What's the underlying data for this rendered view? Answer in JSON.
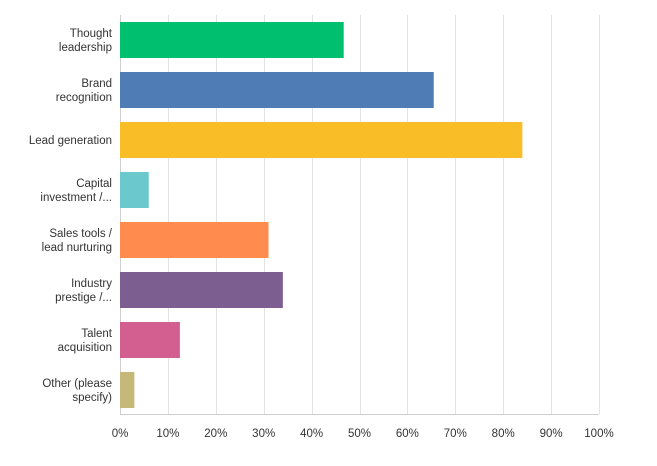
{
  "chart_data": {
    "type": "bar",
    "orientation": "horizontal",
    "categories": [
      [
        "Thought",
        "leadership"
      ],
      [
        "Brand",
        "recognition"
      ],
      [
        "Lead generation"
      ],
      [
        "Capital",
        "investment /..."
      ],
      [
        "Sales tools /",
        "lead nurturing"
      ],
      [
        "Industry",
        "prestige /..."
      ],
      [
        "Talent",
        "acquisition"
      ],
      [
        "Other (please",
        "specify)"
      ]
    ],
    "values": [
      46.7,
      65.5,
      84.0,
      6.0,
      31.0,
      34.0,
      12.5,
      3.0
    ],
    "colors": [
      "#00bf6f",
      "#507cb6",
      "#f9be27",
      "#6bc8cd",
      "#ff8b4f",
      "#7d5e90",
      "#d25f90",
      "#c6b879"
    ],
    "xlim": [
      0,
      100
    ],
    "x_ticks": [
      "0%",
      "10%",
      "20%",
      "30%",
      "40%",
      "50%",
      "60%",
      "70%",
      "80%",
      "90%",
      "100%"
    ],
    "grid": true,
    "title": "",
    "xlabel": "",
    "ylabel": ""
  }
}
